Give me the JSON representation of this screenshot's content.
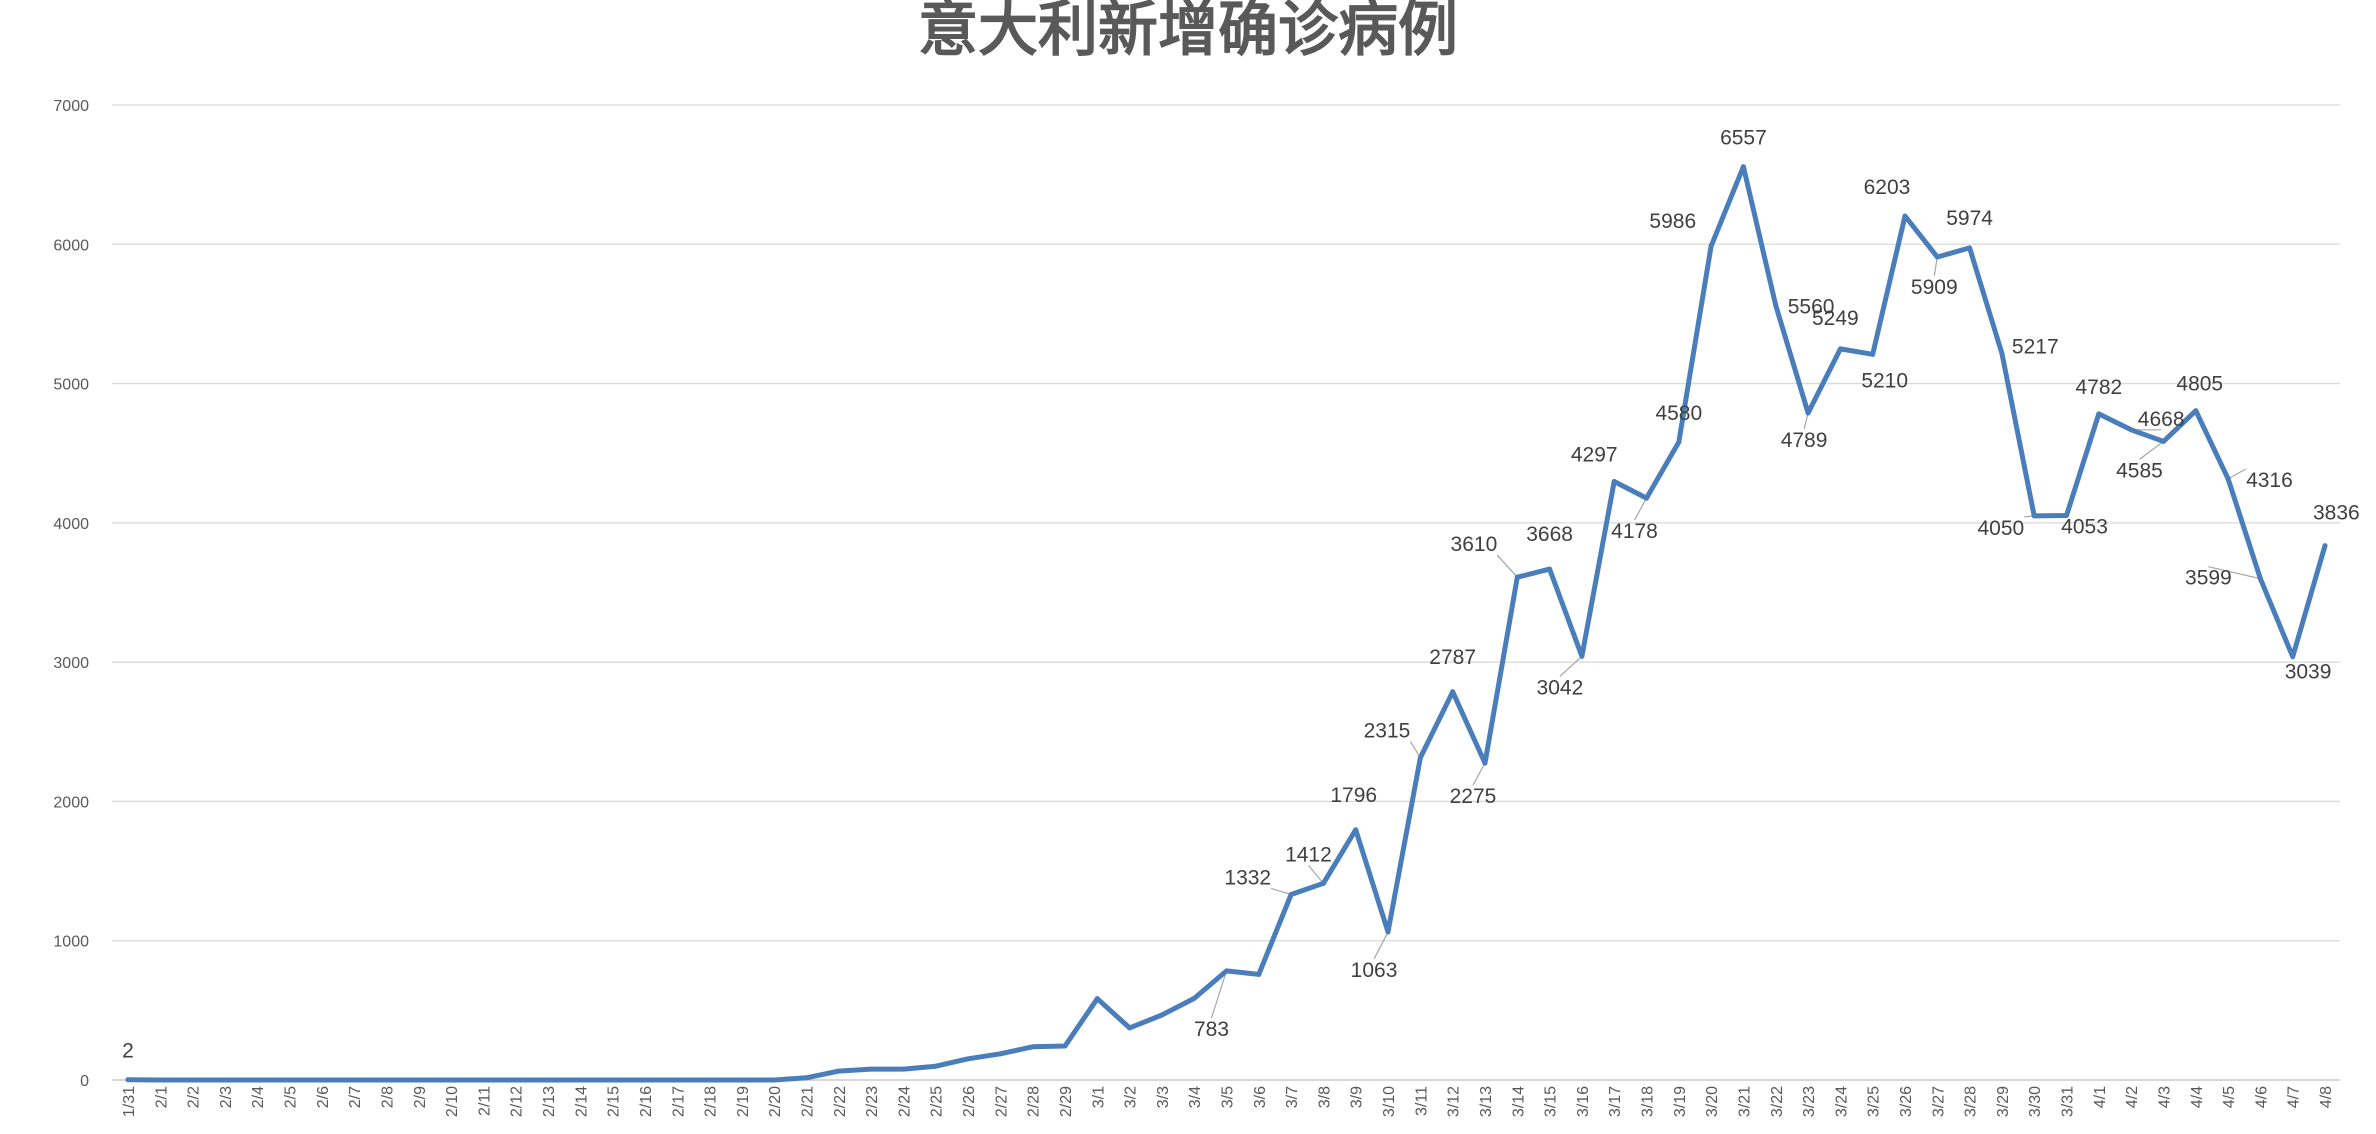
{
  "chart_data": {
    "type": "line",
    "title": "意大利新增确诊病例",
    "xlabel": "",
    "ylabel": "",
    "ylim": [
      0,
      7000
    ],
    "yticks": [
      0,
      1000,
      2000,
      3000,
      4000,
      5000,
      6000,
      7000
    ],
    "grid": true,
    "legend": "none",
    "color": "#4a7ebb",
    "categories": [
      "1/31",
      "2/1",
      "2/2",
      "2/3",
      "2/4",
      "2/5",
      "2/6",
      "2/7",
      "2/8",
      "2/9",
      "2/10",
      "2/11",
      "2/12",
      "2/13",
      "2/14",
      "2/15",
      "2/16",
      "2/17",
      "2/18",
      "2/19",
      "2/20",
      "2/21",
      "2/22",
      "2/23",
      "2/24",
      "2/25",
      "2/26",
      "2/27",
      "2/28",
      "2/29",
      "3/1",
      "3/2",
      "3/3",
      "3/4",
      "3/5",
      "3/6",
      "3/7",
      "3/8",
      "3/9",
      "3/10",
      "3/11",
      "3/12",
      "3/13",
      "3/14",
      "3/15",
      "3/16",
      "3/17",
      "3/18",
      "3/19",
      "3/20",
      "3/21",
      "3/22",
      "3/23",
      "3/24",
      "3/25",
      "3/26",
      "3/27",
      "3/28",
      "3/29",
      "3/30",
      "3/31",
      "4/1",
      "4/2",
      "4/3",
      "4/4",
      "4/5",
      "4/6",
      "4/7",
      "4/8"
    ],
    "values": [
      2,
      0,
      0,
      0,
      0,
      0,
      0,
      0,
      0,
      0,
      0,
      0,
      0,
      0,
      0,
      0,
      0,
      0,
      0,
      0,
      0,
      16,
      64,
      78,
      78,
      99,
      152,
      188,
      238,
      244,
      584,
      374,
      467,
      586,
      783,
      758,
      1332,
      1412,
      1796,
      1063,
      2315,
      2787,
      2275,
      3610,
      3668,
      3042,
      4297,
      4178,
      4580,
      5986,
      6557,
      5560,
      4789,
      5249,
      5210,
      6203,
      5909,
      5974,
      5217,
      4050,
      4053,
      4782,
      4668,
      4585,
      4805,
      4316,
      3599,
      3039,
      3836
    ],
    "data_labels": [
      {
        "x": "1/31",
        "text": "2"
      },
      {
        "x": "3/5",
        "text": "783"
      },
      {
        "x": "3/7",
        "text": "1332"
      },
      {
        "x": "3/8",
        "text": "1412"
      },
      {
        "x": "3/9",
        "text": "1796"
      },
      {
        "x": "3/10",
        "text": "1063"
      },
      {
        "x": "3/11",
        "text": "2315"
      },
      {
        "x": "3/12",
        "text": "2787"
      },
      {
        "x": "3/13",
        "text": "2275"
      },
      {
        "x": "3/14",
        "text": "3610"
      },
      {
        "x": "3/15",
        "text": "3668"
      },
      {
        "x": "3/16",
        "text": "3042"
      },
      {
        "x": "3/17",
        "text": "4297"
      },
      {
        "x": "3/18",
        "text": "4178"
      },
      {
        "x": "3/19",
        "text": "4580"
      },
      {
        "x": "3/20",
        "text": "5986"
      },
      {
        "x": "3/21",
        "text": "6557"
      },
      {
        "x": "3/22",
        "text": "5560"
      },
      {
        "x": "3/23",
        "text": "4789"
      },
      {
        "x": "3/24",
        "text": "5249"
      },
      {
        "x": "3/25",
        "text": "5210"
      },
      {
        "x": "3/26",
        "text": "6203"
      },
      {
        "x": "3/27",
        "text": "5909"
      },
      {
        "x": "3/28",
        "text": "5974"
      },
      {
        "x": "3/29",
        "text": "5217"
      },
      {
        "x": "3/30",
        "text": "4050"
      },
      {
        "x": "3/31",
        "text": "4053"
      },
      {
        "x": "4/1",
        "text": "4782"
      },
      {
        "x": "4/2",
        "text": "4668"
      },
      {
        "x": "4/3",
        "text": "4585"
      },
      {
        "x": "4/4",
        "text": "4805"
      },
      {
        "x": "4/5",
        "text": "4316"
      },
      {
        "x": "4/6",
        "text": "3599"
      },
      {
        "x": "4/7",
        "text": "3039"
      },
      {
        "x": "4/8",
        "text": "3836"
      }
    ]
  }
}
